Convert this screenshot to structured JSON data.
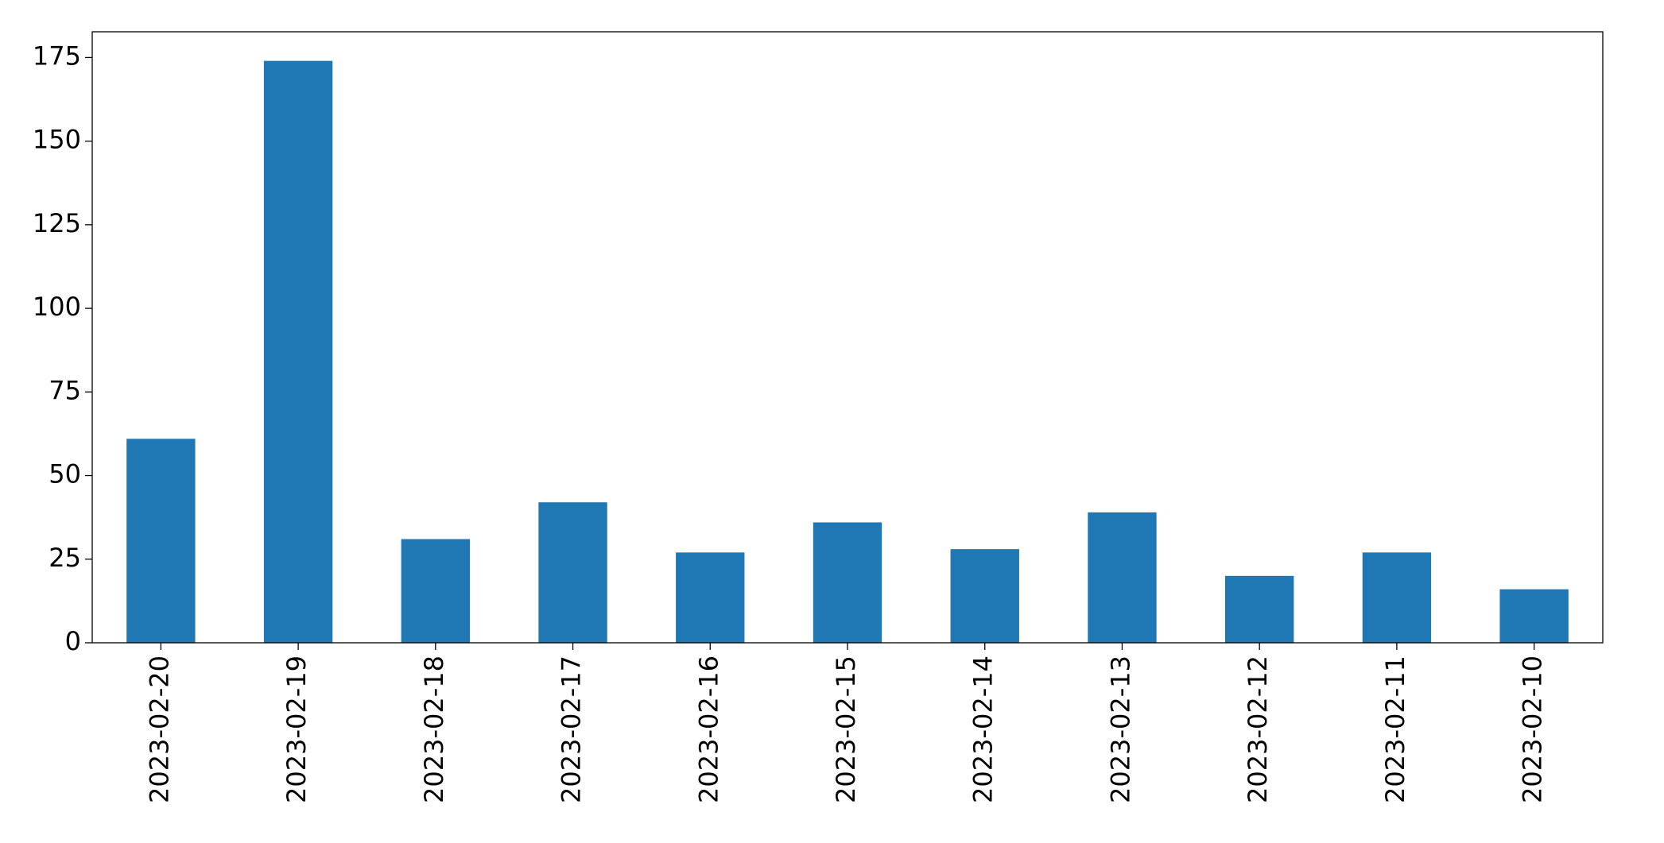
{
  "chart_data": {
    "type": "bar",
    "categories": [
      "2023-02-20",
      "2023-02-19",
      "2023-02-18",
      "2023-02-17",
      "2023-02-16",
      "2023-02-15",
      "2023-02-14",
      "2023-02-13",
      "2023-02-12",
      "2023-02-11",
      "2023-02-10"
    ],
    "values": [
      61,
      174,
      31,
      42,
      27,
      36,
      28,
      39,
      20,
      27,
      16
    ],
    "color": "#1f77b4",
    "ylim": [
      0,
      182.7
    ],
    "yticks": [
      0,
      25,
      50,
      75,
      100,
      125,
      150,
      175
    ],
    "grid": false
  }
}
